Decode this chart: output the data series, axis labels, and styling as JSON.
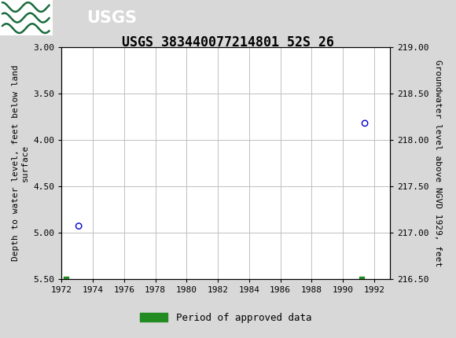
{
  "title": "USGS 383440077214801 52S 26",
  "ylabel_left": "Depth to water level, feet below land\nsurface",
  "ylabel_right": "Groundwater level above NGVD 1929, feet",
  "xlim": [
    1972,
    1993
  ],
  "ylim_left": [
    3.0,
    5.5
  ],
  "ylim_right": [
    219.0,
    216.5
  ],
  "xticks": [
    1972,
    1974,
    1976,
    1978,
    1980,
    1982,
    1984,
    1986,
    1988,
    1990,
    1992
  ],
  "yticks_left": [
    3.0,
    3.5,
    4.0,
    4.5,
    5.0,
    5.5
  ],
  "yticks_right": [
    219.0,
    218.5,
    218.0,
    217.5,
    217.0,
    216.5
  ],
  "data_points_x": [
    1973.1,
    1991.4
  ],
  "data_points_y": [
    4.93,
    3.82
  ],
  "point_color": "#0000cc",
  "point_size": 28,
  "green_bar_x1": 1972.3,
  "green_bar_x2": 1991.2,
  "green_bar_y": 5.5,
  "green_color": "#228B22",
  "header_color": "#1a6b3c",
  "legend_label": "Period of approved data",
  "background_color": "#d8d8d8",
  "plot_bg_color": "#ffffff",
  "grid_color": "#c0c0c0",
  "title_fontsize": 12,
  "axis_label_fontsize": 8,
  "tick_fontsize": 8
}
